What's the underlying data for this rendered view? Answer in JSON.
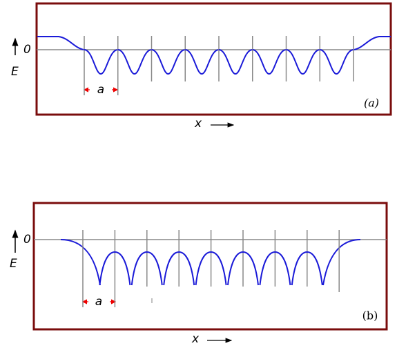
{
  "panel_a": {
    "zero_label": "0",
    "energy_label": "E",
    "spacing_label": "a",
    "panel_label": "(a)",
    "axis_label": "x"
  },
  "panel_b": {
    "zero_label": "0",
    "energy_label": "E",
    "spacing_label": "a",
    "panel_label": "(b)",
    "axis_label": "x"
  }
}
